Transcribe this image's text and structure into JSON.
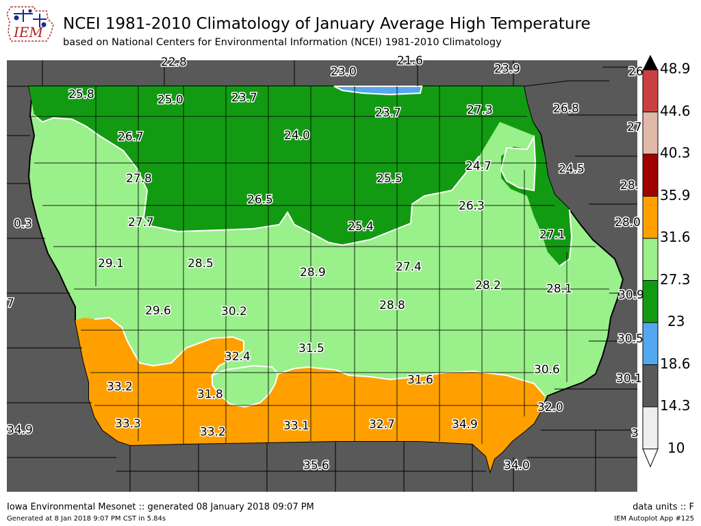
{
  "header": {
    "title": "NCEI 1981-2010 Climatology of January Average High Temperature",
    "subtitle": "based on National Centers for Environmental Information (NCEI) 1981-2010 Climatology",
    "logo_text": "IEM"
  },
  "colorbar": {
    "labels": [
      "48.9",
      "44.6",
      "40.3",
      "35.9",
      "31.6",
      "27.3",
      "23",
      "18.6",
      "14.3",
      "10"
    ],
    "colors": [
      "#c94040",
      "#e0b8a8",
      "#a00000",
      "#ffa000",
      "#9af08a",
      "#129b12",
      "#54a8f0",
      "#595959",
      "#eeeeee"
    ],
    "over_color": "#000000"
  },
  "stations": [
    {
      "value": "22.8"
    },
    {
      "value": "23.0"
    },
    {
      "value": "21.6"
    },
    {
      "value": "23.9"
    },
    {
      "value": "26"
    },
    {
      "value": "25.8"
    },
    {
      "value": "25.0"
    },
    {
      "value": "23.7"
    },
    {
      "value": "23.7"
    },
    {
      "value": "27.3"
    },
    {
      "value": "26.8"
    },
    {
      "value": "27."
    },
    {
      "value": "26.7"
    },
    {
      "value": "24.0"
    },
    {
      "value": "24.7"
    },
    {
      "value": "24.5"
    },
    {
      "value": "27.8"
    },
    {
      "value": "25.5"
    },
    {
      "value": "28."
    },
    {
      "value": "26.5"
    },
    {
      "value": "26.3"
    },
    {
      "value": "0.3"
    },
    {
      "value": "27.7"
    },
    {
      "value": "25.4"
    },
    {
      "value": "28.0"
    },
    {
      "value": "27.1"
    },
    {
      "value": "29.1"
    },
    {
      "value": "28.5"
    },
    {
      "value": "27.4"
    },
    {
      "value": "28.9"
    },
    {
      "value": "28.2"
    },
    {
      "value": "28.1"
    },
    {
      "value": "30.9"
    },
    {
      "value": "7"
    },
    {
      "value": "29.6"
    },
    {
      "value": "30.2"
    },
    {
      "value": "28.8"
    },
    {
      "value": "31.5"
    },
    {
      "value": "30.5"
    },
    {
      "value": "32.4"
    },
    {
      "value": "30.6"
    },
    {
      "value": "33.2"
    },
    {
      "value": "31.8"
    },
    {
      "value": "31.6"
    },
    {
      "value": "30.1"
    },
    {
      "value": "32.0"
    },
    {
      "value": "33.3"
    },
    {
      "value": "33.1"
    },
    {
      "value": "32.7"
    },
    {
      "value": "34.9"
    },
    {
      "value": "34.9"
    },
    {
      "value": "33.2"
    },
    {
      "value": "3"
    },
    {
      "value": "35.6"
    },
    {
      "value": "34.0"
    }
  ],
  "footer": {
    "left_main": "Iowa Environmental Mesonet :: generated 08 January 2018 09:07 PM",
    "left_small": "Generated at 8 Jan 2018 9:07 PM CST in 5.84s",
    "right_main": "data units :: F",
    "right_small": "IEM Autoplot App #125"
  }
}
